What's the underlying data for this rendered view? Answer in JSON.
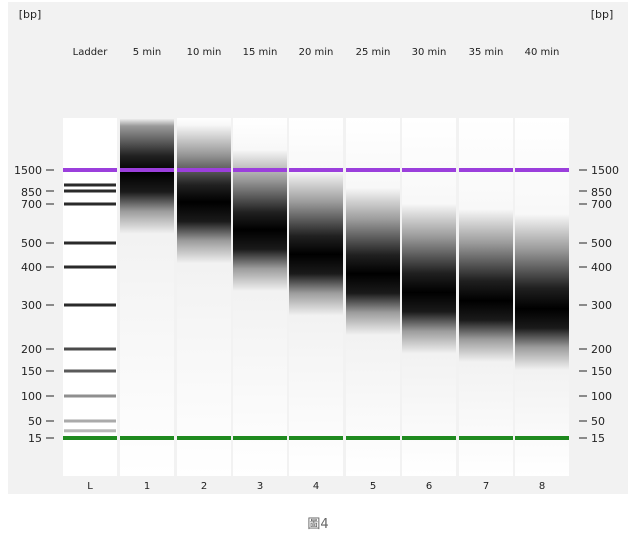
{
  "gel": {
    "unit_label": "[bp]",
    "lane_labels": [
      "Ladder",
      "5 min",
      "10 min",
      "15 min",
      "20 min",
      "25 min",
      "30 min",
      "35 min",
      "40 min"
    ],
    "lane_numbers": [
      "L",
      "1",
      "2",
      "3",
      "4",
      "5",
      "6",
      "7",
      "8"
    ],
    "size_ticks": [
      "1500",
      "850",
      "700",
      "500",
      "400",
      "300",
      "200",
      "150",
      "100",
      "50",
      "15"
    ],
    "ladder_bands_bp": [
      1500,
      1000,
      850,
      700,
      500,
      400,
      300,
      200,
      150,
      100,
      50,
      25,
      15
    ],
    "smear_peaks_bp": [
      1400,
      720,
      560,
      450,
      380,
      330,
      310,
      290
    ],
    "upper_marker_bp": 1500,
    "lower_marker_bp": 15,
    "colors": {
      "upper_marker": "#9b3fdc",
      "lower_marker": "#1f8a1f",
      "band": "#2a2a2a",
      "frame": "#f2f2f2"
    }
  },
  "caption": "圖4"
}
